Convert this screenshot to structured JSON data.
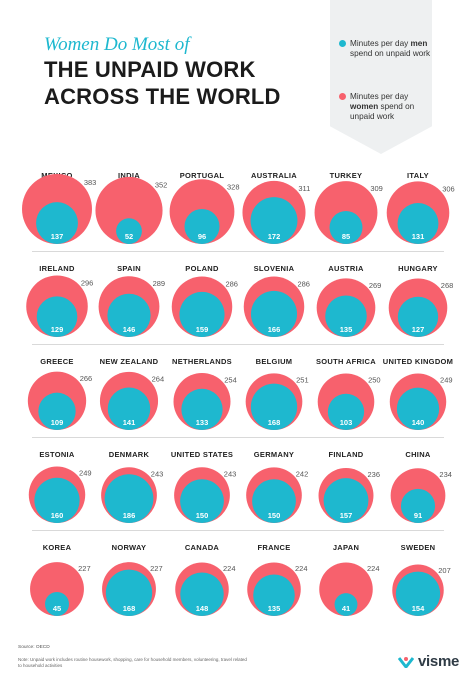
{
  "header": {
    "subtitle": "Women Do Most of",
    "title_line1": "THE UNPAID WORK",
    "title_line2": "ACROSS THE WORLD"
  },
  "legend": {
    "men_text_before": "Minutes per day ",
    "men_bold": "men",
    "men_text_after": " spend on unpaid work",
    "women_text_before": "Minutes per day ",
    "women_bold": "women",
    "women_text_after": " spend on unpaid work",
    "men_color": "#1eb8cf",
    "women_color": "#f7616d"
  },
  "chart_data": {
    "type": "bubble",
    "series": [
      {
        "name": "Minutes per day men spend on unpaid work",
        "color": "#1eb8cf"
      },
      {
        "name": "Minutes per day women spend on unpaid work",
        "color": "#f7616d"
      }
    ],
    "countries": [
      {
        "name": "MEXICO",
        "women": 383,
        "men": 137
      },
      {
        "name": "INDIA",
        "women": 352,
        "men": 52
      },
      {
        "name": "PORTUGAL",
        "women": 328,
        "men": 96
      },
      {
        "name": "AUSTRALIA",
        "women": 311,
        "men": 172
      },
      {
        "name": "TURKEY",
        "women": 309,
        "men": 85
      },
      {
        "name": "ITALY",
        "women": 306,
        "men": 131
      },
      {
        "name": "IRELAND",
        "women": 296,
        "men": 129
      },
      {
        "name": "SPAIN",
        "women": 289,
        "men": 146
      },
      {
        "name": "POLAND",
        "women": 286,
        "men": 159
      },
      {
        "name": "SLOVENIA",
        "women": 286,
        "men": 166
      },
      {
        "name": "AUSTRIA",
        "women": 269,
        "men": 135
      },
      {
        "name": "HUNGARY",
        "women": 268,
        "men": 127
      },
      {
        "name": "GREECE",
        "women": 266,
        "men": 109
      },
      {
        "name": "NEW ZEALAND",
        "women": 264,
        "men": 141
      },
      {
        "name": "NETHERLANDS",
        "women": 254,
        "men": 133
      },
      {
        "name": "BELGIUM",
        "women": 251,
        "men": 168
      },
      {
        "name": "SOUTH AFRICA",
        "women": 250,
        "men": 103
      },
      {
        "name": "UNITED KINGDOM",
        "women": 249,
        "men": 140
      },
      {
        "name": "ESTONIA",
        "women": 249,
        "men": 160
      },
      {
        "name": "DENMARK",
        "women": 243,
        "men": 186
      },
      {
        "name": "UNITED STATES",
        "women": 243,
        "men": 150
      },
      {
        "name": "GERMANY",
        "women": 242,
        "men": 150
      },
      {
        "name": "FINLAND",
        "women": 236,
        "men": 157
      },
      {
        "name": "CHINA",
        "women": 234,
        "men": 91
      },
      {
        "name": "KOREA",
        "women": 227,
        "men": 45
      },
      {
        "name": "NORWAY",
        "women": 227,
        "men": 168
      },
      {
        "name": "CANADA",
        "women": 224,
        "men": 148
      },
      {
        "name": "FRANCE",
        "women": 224,
        "men": 135
      },
      {
        "name": "JAPAN",
        "women": 224,
        "men": 41
      },
      {
        "name": "SWEDEN",
        "women": 207,
        "men": 154
      }
    ]
  },
  "footer": {
    "source": "Source: OECD",
    "note": "Note: Unpaid work includes routine housework, shopping, care for household members, volunteering, travel related to household activities",
    "brand": "visme"
  }
}
